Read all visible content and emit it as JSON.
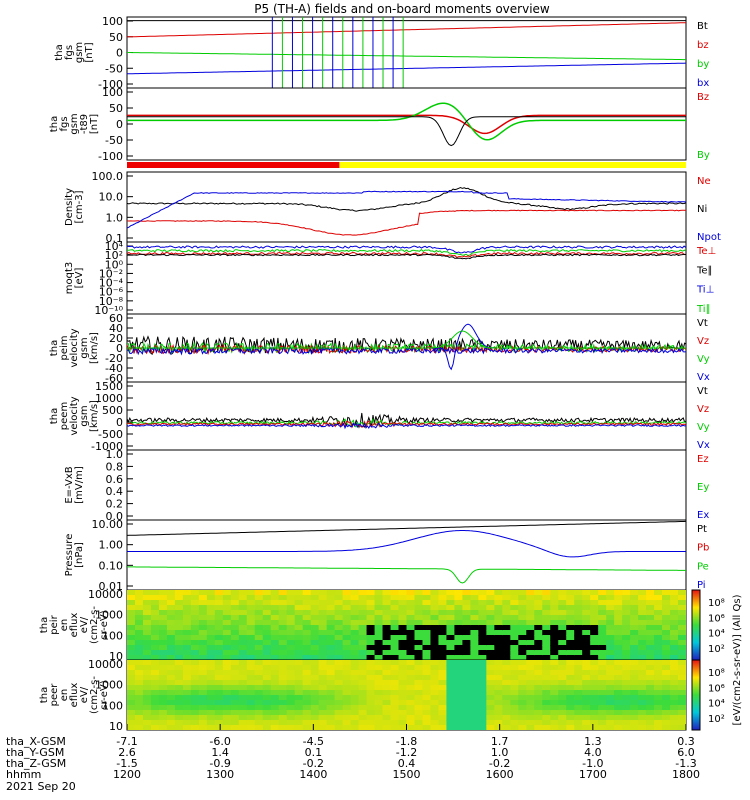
{
  "title": "P5 (TH-A) fields and on-board moments overview",
  "chart_data": {
    "type": "line",
    "date": "2021 Sep 20",
    "x_label": "hhmm",
    "x_ticks": [
      "1200",
      "1300",
      "1400",
      "1500",
      "1600",
      "1700",
      "1800"
    ],
    "x_range": [
      "1200",
      "1800"
    ],
    "orbit_rows": [
      {
        "label": "tha_X-GSM",
        "values": [
          "-7.1",
          "-6.0",
          "-4.5",
          "-1.8",
          "1.7",
          "1.3",
          "0.3"
        ]
      },
      {
        "label": "tha_Y-GSM",
        "values": [
          "2.6",
          "1.4",
          "0.1",
          "-1.2",
          "1.0",
          "4.0",
          "6.0"
        ]
      },
      {
        "label": "tha_Z-GSM",
        "values": [
          "-1.5",
          "-0.9",
          "-0.2",
          "0.4",
          "-0.2",
          "-1.0",
          "-1.3"
        ]
      }
    ],
    "panels": [
      {
        "id": "fgs",
        "ylabel": [
          "tha",
          "fgs",
          "gsm",
          "[nT]"
        ],
        "yticks": [
          "100",
          "50",
          "0",
          "-50",
          "-100"
        ],
        "ylim": [
          -100,
          100
        ],
        "legend": [
          {
            "name": "Bt",
            "color": "#000000"
          },
          {
            "name": "bz",
            "color": "#dd0000"
          },
          {
            "name": "by",
            "color": "#00cc00"
          },
          {
            "name": "bx",
            "color": "#0000dd"
          }
        ]
      },
      {
        "id": "fgs_t89",
        "ylabel": [
          "tha",
          "fgs",
          "gsm",
          "-t89",
          "[nT]"
        ],
        "yticks": [
          "100",
          "50",
          "0",
          "-50",
          "-100"
        ],
        "ylim": [
          -120,
          120
        ],
        "legend": [
          {
            "name": "Bz",
            "color": "#dd0000"
          },
          {
            "name": "By",
            "color": "#00cc00"
          }
        ]
      },
      {
        "id": "density",
        "ylabel": [
          "Density",
          "[cm-3]"
        ],
        "yticks": [
          "100.0",
          "10.0",
          "1.0",
          "0.1"
        ],
        "log": true,
        "legend": [
          {
            "name": "Ne",
            "color": "#dd0000"
          },
          {
            "name": "Ni",
            "color": "#000000"
          },
          {
            "name": "Npot",
            "color": "#0000dd"
          }
        ]
      },
      {
        "id": "temp",
        "ylabel": [
          "moqt3",
          "[eV]"
        ],
        "yticks": [
          "10⁴",
          "10²",
          "10⁰",
          "10⁻²",
          "10⁻⁴",
          "10⁻⁶",
          "10⁻⁸",
          "10⁻¹⁰"
        ],
        "log": true,
        "legend": [
          {
            "name": "Te⊥",
            "color": "#dd0000"
          },
          {
            "name": "Te∥",
            "color": "#000000"
          },
          {
            "name": "Ti⊥",
            "color": "#0000dd"
          },
          {
            "name": "Ti∥",
            "color": "#00cc00"
          }
        ]
      },
      {
        "id": "peim",
        "ylabel": [
          "tha",
          "peim",
          "velocity",
          "gsm",
          "[km/s]"
        ],
        "yticks": [
          "60",
          "40",
          "20",
          "0",
          "-20",
          "-40",
          "-60"
        ],
        "ylim": [
          -60,
          60
        ],
        "legend": [
          {
            "name": "Vt",
            "color": "#000000"
          },
          {
            "name": "Vz",
            "color": "#dd0000"
          },
          {
            "name": "Vy",
            "color": "#00cc00"
          },
          {
            "name": "Vx",
            "color": "#0000dd"
          }
        ]
      },
      {
        "id": "peem",
        "ylabel": [
          "tha",
          "peem",
          "velocity",
          "gsm",
          "[km/s]"
        ],
        "yticks": [
          "1500",
          "1000",
          "500",
          "0",
          "-500",
          "-1000"
        ],
        "ylim": [
          -1000,
          1500
        ],
        "legend": [
          {
            "name": "Vt",
            "color": "#000000"
          },
          {
            "name": "Vz",
            "color": "#dd0000"
          },
          {
            "name": "Vy",
            "color": "#00cc00"
          },
          {
            "name": "Vx",
            "color": "#0000dd"
          }
        ]
      },
      {
        "id": "efield",
        "ylabel": [
          "E=-VxB",
          "[mV/m]"
        ],
        "yticks": [
          "1.0",
          "0.8",
          "0.6",
          "0.4",
          "0.2",
          "0.0"
        ],
        "ylim": [
          0,
          1
        ],
        "legend": [
          {
            "name": "Ez",
            "color": "#dd0000"
          },
          {
            "name": "Ey",
            "color": "#00cc00"
          },
          {
            "name": "Ex",
            "color": "#0000dd"
          }
        ]
      },
      {
        "id": "pressure",
        "ylabel": [
          "Pressure",
          "[nPa]"
        ],
        "yticks": [
          "10.00",
          "1.00",
          "0.10",
          "0.01"
        ],
        "log": true,
        "legend": [
          {
            "name": "Pt",
            "color": "#000000"
          },
          {
            "name": "Pb",
            "color": "#dd0000"
          },
          {
            "name": "Pe",
            "color": "#00cc00"
          },
          {
            "name": "Pi",
            "color": "#0000dd"
          }
        ]
      },
      {
        "id": "peir",
        "ylabel": [
          "tha",
          "peir",
          "en",
          "eflux",
          "eV/",
          "(cm2-s-",
          "sr-eV)"
        ],
        "yticks": [
          "10000",
          "1000",
          "100",
          "10"
        ],
        "log": true
      },
      {
        "id": "peer",
        "ylabel": [
          "tha",
          "peer",
          "en",
          "eflux",
          "eV/",
          "(cm2-s-",
          "sr-eV)"
        ],
        "yticks": [
          "10000",
          "1000",
          "100",
          "10"
        ],
        "log": true
      }
    ],
    "colorbars": [
      {
        "label": "[eV/(cm2-s-sr-eV)] (All Qs)",
        "ticks": [
          "10⁸",
          "10⁶",
          "10⁴",
          "10²"
        ]
      },
      {
        "label": "[eV/(cm2-s-sr-eV)]",
        "ticks": [
          "10⁸",
          "10⁶",
          "10⁴",
          "10²"
        ]
      }
    ],
    "colorbar_label": "[eV/(cm2-s-sr-eV)]",
    "colors": {
      "black": "#000000",
      "red": "#dd0000",
      "green": "#00cc00",
      "blue": "#0000dd",
      "yellow": "#ffff00"
    }
  }
}
